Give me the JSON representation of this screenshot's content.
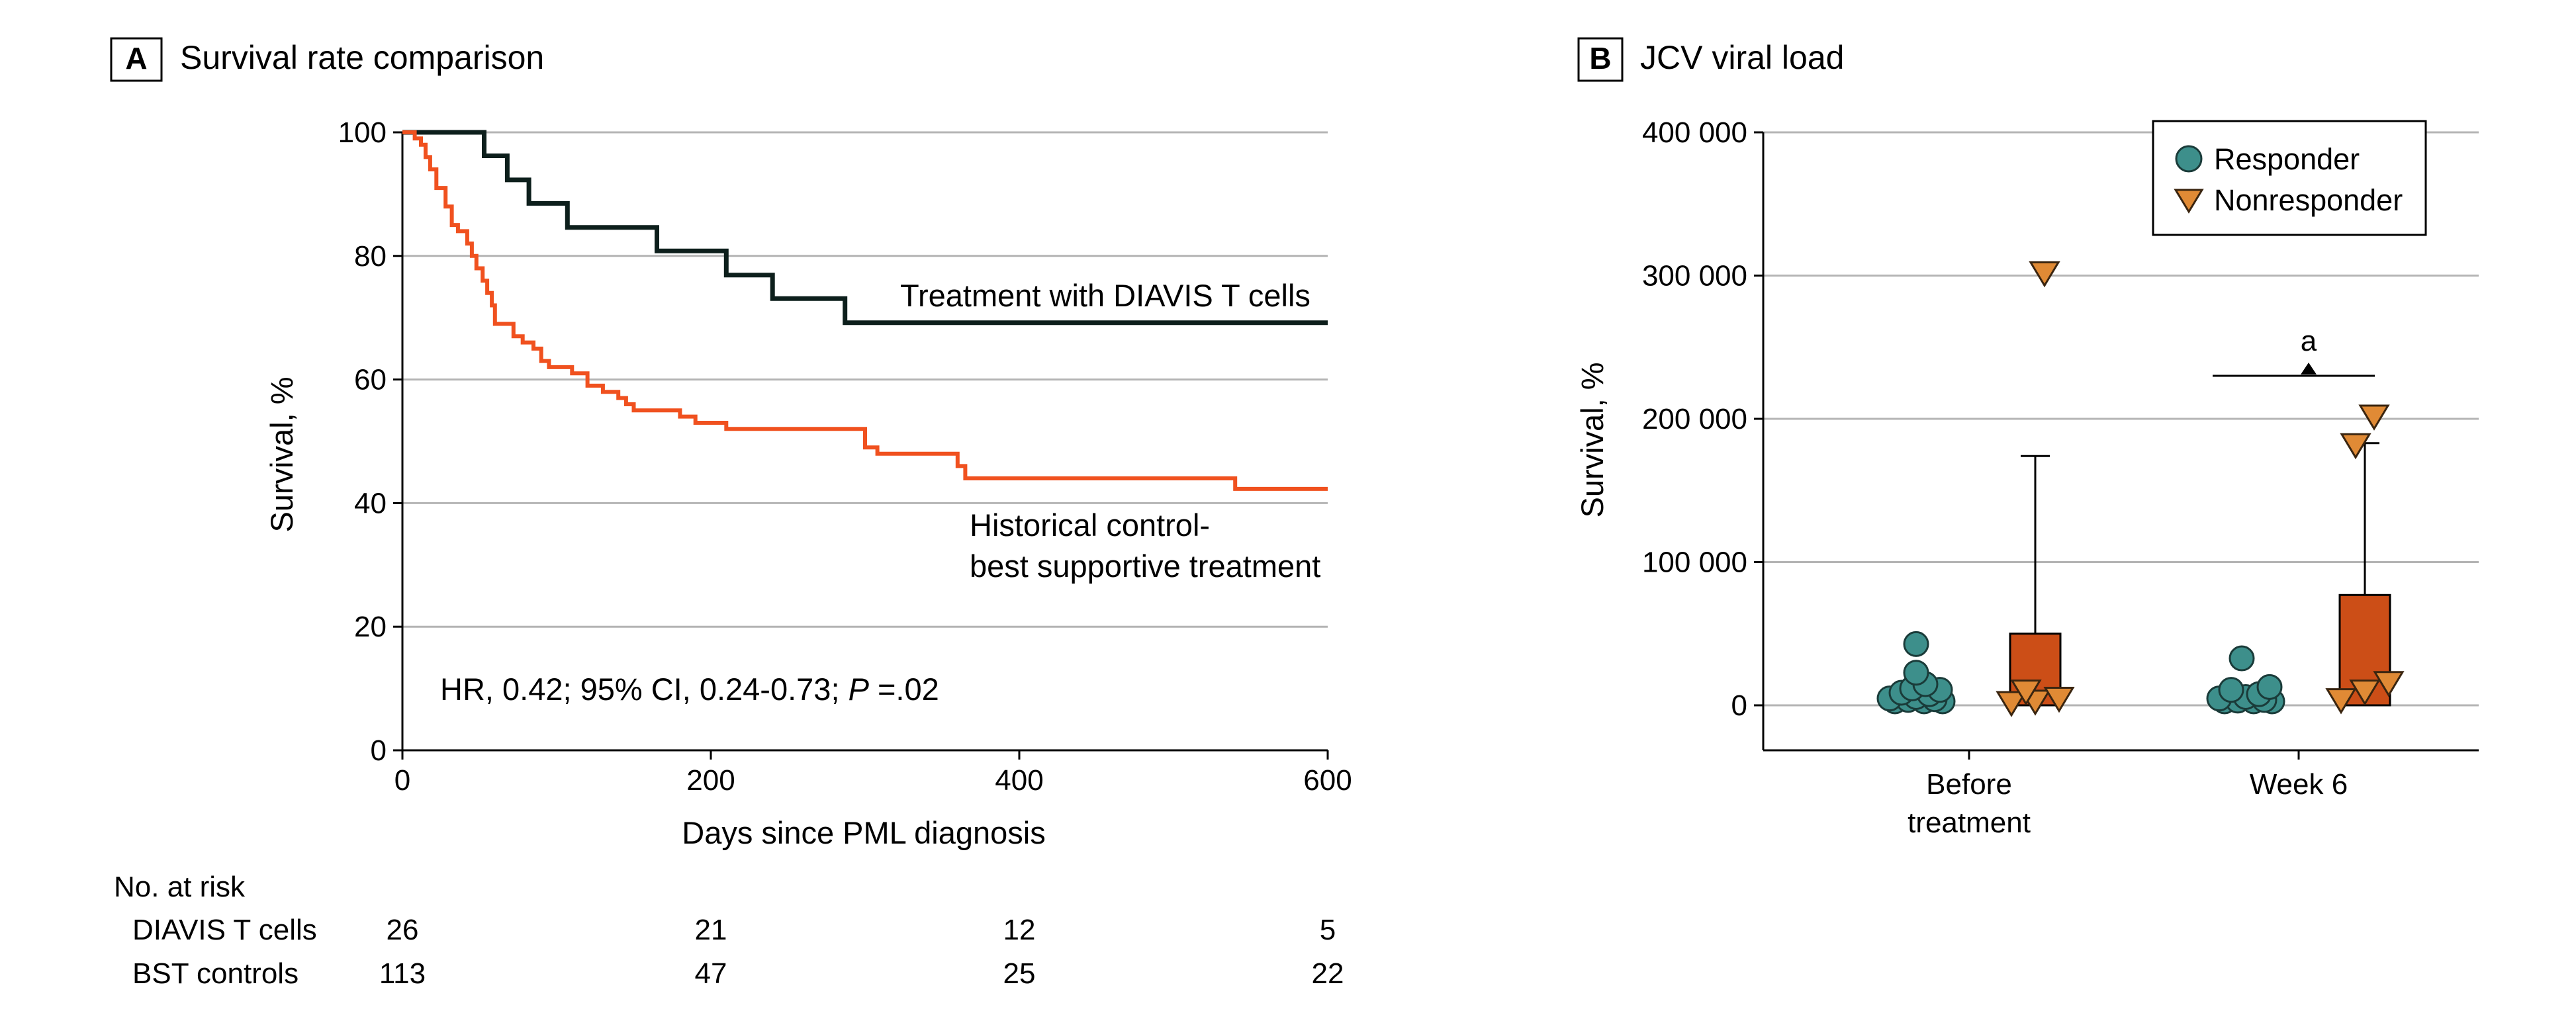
{
  "colors": {
    "diavis": "#0d1f1c",
    "bst": "#f0511f",
    "responder": "#3d8f8b",
    "nonresponder_marker": "#e08a35",
    "nonresponder_box": "#cc4e17",
    "grid": "#b4b4b4"
  },
  "chart_data": [
    {
      "type": "line",
      "step": true,
      "panel_label": "A",
      "title": "Survival rate comparison",
      "xlabel": "Days since PML diagnosis",
      "ylabel": "Survival, %",
      "xlim": [
        0,
        600
      ],
      "ylim": [
        0,
        100
      ],
      "xticks": [
        "0",
        "200",
        "400",
        "600"
      ],
      "yticks": [
        "0",
        "20",
        "40",
        "60",
        "80",
        "100"
      ],
      "grid": "horizontal",
      "series": [
        {
          "name": "Treatment with DIAVIS T cells",
          "color_key": "diavis",
          "points": [
            [
              0,
              100
            ],
            [
              53,
              100
            ],
            [
              53,
              96.2
            ],
            [
              68,
              96.2
            ],
            [
              68,
              92.3
            ],
            [
              82,
              92.3
            ],
            [
              82,
              88.5
            ],
            [
              107,
              88.5
            ],
            [
              107,
              84.6
            ],
            [
              165,
              84.6
            ],
            [
              165,
              80.8
            ],
            [
              210,
              80.8
            ],
            [
              210,
              76.9
            ],
            [
              240,
              76.9
            ],
            [
              240,
              73.1
            ],
            [
              287,
              73.1
            ],
            [
              287,
              69.2
            ],
            [
              600,
              69.2
            ]
          ]
        },
        {
          "name": "Historical control-best supportive treatment",
          "color_key": "bst",
          "points": [
            [
              0,
              100
            ],
            [
              8,
              100
            ],
            [
              8,
              99
            ],
            [
              12,
              99
            ],
            [
              12,
              98
            ],
            [
              15,
              98
            ],
            [
              15,
              96
            ],
            [
              18,
              96
            ],
            [
              18,
              94
            ],
            [
              22,
              94
            ],
            [
              22,
              91
            ],
            [
              28,
              91
            ],
            [
              28,
              88
            ],
            [
              32,
              88
            ],
            [
              32,
              85
            ],
            [
              36,
              85
            ],
            [
              36,
              84
            ],
            [
              42,
              84
            ],
            [
              42,
              82
            ],
            [
              45,
              82
            ],
            [
              45,
              80
            ],
            [
              48,
              80
            ],
            [
              48,
              78
            ],
            [
              52,
              78
            ],
            [
              52,
              76
            ],
            [
              55,
              76
            ],
            [
              55,
              74
            ],
            [
              58,
              74
            ],
            [
              58,
              72
            ],
            [
              60,
              72
            ],
            [
              60,
              69
            ],
            [
              72,
              69
            ],
            [
              72,
              67
            ],
            [
              78,
              67
            ],
            [
              78,
              66
            ],
            [
              85,
              66
            ],
            [
              85,
              65
            ],
            [
              90,
              65
            ],
            [
              90,
              63
            ],
            [
              95,
              63
            ],
            [
              95,
              62
            ],
            [
              110,
              62
            ],
            [
              110,
              61
            ],
            [
              120,
              61
            ],
            [
              120,
              59
            ],
            [
              130,
              59
            ],
            [
              130,
              58
            ],
            [
              140,
              58
            ],
            [
              140,
              57
            ],
            [
              145,
              57
            ],
            [
              145,
              56
            ],
            [
              150,
              56
            ],
            [
              150,
              55
            ],
            [
              180,
              55
            ],
            [
              180,
              54
            ],
            [
              190,
              54
            ],
            [
              190,
              53
            ],
            [
              210,
              53
            ],
            [
              210,
              52
            ],
            [
              300,
              52
            ],
            [
              300,
              49
            ],
            [
              308,
              49
            ],
            [
              308,
              48
            ],
            [
              360,
              48
            ],
            [
              360,
              46
            ],
            [
              365,
              46
            ],
            [
              365,
              44
            ],
            [
              540,
              44
            ],
            [
              540,
              42.3
            ],
            [
              600,
              42.3
            ]
          ]
        }
      ],
      "series_labels": [
        "Treatment with DIAVIS T cells",
        "Historical control-",
        "best supportive treatment"
      ],
      "annotation": {
        "pre": "HR, 0.42; 95% CI, 0.24-0.73; ",
        "p": "P",
        "post": " =.02"
      },
      "risk_table": {
        "title": "No. at risk",
        "rows": [
          {
            "label": "DIAVIS T cells",
            "values": [
              "26",
              "21",
              "12",
              "5"
            ]
          },
          {
            "label": "BST controls",
            "values": [
              "113",
              "47",
              "25",
              "22"
            ]
          }
        ]
      }
    },
    {
      "type": "scatter",
      "subtype": "box-with-points",
      "panel_label": "B",
      "title": "JCV viral load",
      "ylabel": "Survival, %",
      "ylim": [
        0,
        400000
      ],
      "yticks": [
        "0",
        "100 000",
        "200 000",
        "300 000",
        "400 000"
      ],
      "categories": [
        "Before treatment",
        "Week 6"
      ],
      "category_label_lines": [
        [
          "Before",
          "treatment"
        ],
        [
          "Week 6"
        ]
      ],
      "grid": "horizontal",
      "legend": {
        "placement": "top-right",
        "entries": [
          "Responder",
          "Nonresponder"
        ]
      },
      "boxes": [
        {
          "category": "Before treatment",
          "group": "Nonresponder",
          "q1": 0,
          "q3": 50000,
          "whisker_high": 174000
        },
        {
          "category": "Week 6",
          "group": "Nonresponder",
          "q1": 0,
          "q3": 77000,
          "whisker_high": 183000
        }
      ],
      "points": {
        "Responder": {
          "Before treatment": [
            0,
            0,
            0,
            1000,
            1500,
            2000,
            3000,
            5000,
            6000,
            8000,
            9000,
            12000,
            20000,
            40000
          ],
          "Week 6": [
            0,
            0,
            0,
            500,
            1000,
            2000,
            3000,
            5000,
            8000,
            10000,
            30000
          ]
        },
        "Nonresponder": {
          "Before treatment": [
            0,
            1000,
            3000,
            8000,
            300000
          ],
          "Week 6": [
            2000,
            8000,
            14000,
            180000,
            200000
          ]
        }
      },
      "significance": {
        "label": "a",
        "category": "Week 6",
        "value": 230000
      }
    }
  ]
}
